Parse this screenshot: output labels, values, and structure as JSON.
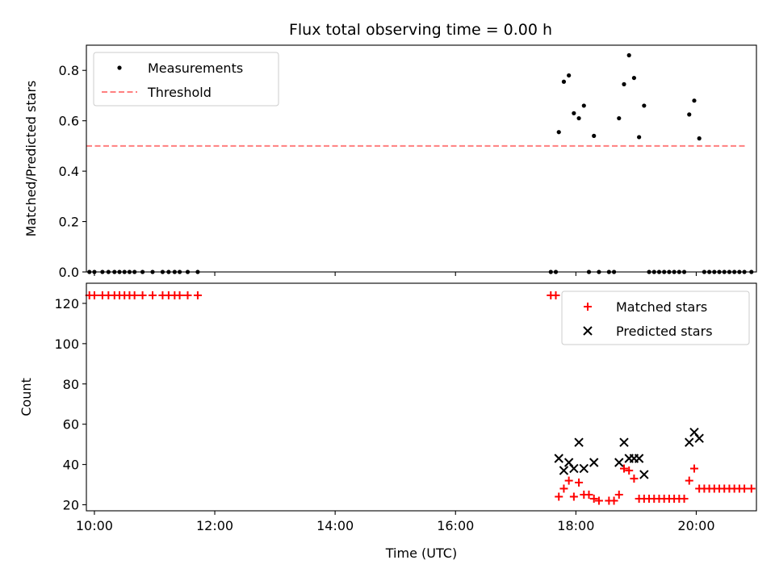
{
  "chart_data": [
    {
      "type": "scatter",
      "title": "Flux total observing time = 0.00 h",
      "xlabel": "",
      "ylabel": "Matched/Predicted stars",
      "xlim": [
        "09:52",
        "21:00"
      ],
      "ylim": [
        0,
        0.9
      ],
      "yticks": [
        0.0,
        0.2,
        0.4,
        0.6,
        0.8
      ],
      "ytick_labels": [
        "0.0",
        "0.2",
        "0.4",
        "0.6",
        "0.8"
      ],
      "xticks": [
        "10:00",
        "12:00",
        "14:00",
        "16:00",
        "18:00",
        "20:00"
      ],
      "grid": false,
      "legend": "top-left",
      "series": [
        {
          "name": "Measurements",
          "marker": "dot",
          "color": "#000000",
          "points": [
            [
              "09:55",
              0
            ],
            [
              "10:00",
              0
            ],
            [
              "10:08",
              0
            ],
            [
              "10:14",
              0
            ],
            [
              "10:20",
              0
            ],
            [
              "10:25",
              0
            ],
            [
              "10:30",
              0
            ],
            [
              "10:35",
              0
            ],
            [
              "10:40",
              0
            ],
            [
              "10:48",
              0
            ],
            [
              "10:58",
              0
            ],
            [
              "11:08",
              0
            ],
            [
              "11:14",
              0
            ],
            [
              "11:20",
              0
            ],
            [
              "11:25",
              0
            ],
            [
              "11:33",
              0
            ],
            [
              "11:43",
              0
            ],
            [
              "17:35",
              0
            ],
            [
              "17:40",
              0
            ],
            [
              "17:43",
              0.555
            ],
            [
              "17:48",
              0.755
            ],
            [
              "17:53",
              0.78
            ],
            [
              "17:58",
              0.63
            ],
            [
              "18:03",
              0.61
            ],
            [
              "18:08",
              0.66
            ],
            [
              "18:13",
              0
            ],
            [
              "18:18",
              0.54
            ],
            [
              "18:23",
              0
            ],
            [
              "18:33",
              0
            ],
            [
              "18:38",
              0
            ],
            [
              "18:43",
              0.61
            ],
            [
              "18:48",
              0.745
            ],
            [
              "18:53",
              0.86
            ],
            [
              "18:58",
              0.77
            ],
            [
              "19:03",
              0.535
            ],
            [
              "19:08",
              0.66
            ],
            [
              "19:13",
              0
            ],
            [
              "19:18",
              0
            ],
            [
              "19:23",
              0
            ],
            [
              "19:28",
              0
            ],
            [
              "19:33",
              0
            ],
            [
              "19:38",
              0
            ],
            [
              "19:43",
              0
            ],
            [
              "19:48",
              0
            ],
            [
              "19:53",
              0.625
            ],
            [
              "19:58",
              0.68
            ],
            [
              "20:03",
              0.53
            ],
            [
              "20:08",
              0
            ],
            [
              "20:13",
              0
            ],
            [
              "20:18",
              0
            ],
            [
              "20:23",
              0
            ],
            [
              "20:28",
              0
            ],
            [
              "20:33",
              0
            ],
            [
              "20:38",
              0
            ],
            [
              "20:43",
              0
            ],
            [
              "20:48",
              0
            ],
            [
              "20:55",
              0
            ]
          ]
        },
        {
          "name": "Threshold",
          "type": "line",
          "style": "dashed",
          "color": "#ff7f7f",
          "points": [
            [
              "09:52",
              0.5
            ],
            [
              "20:50",
              0.5
            ]
          ]
        }
      ]
    },
    {
      "type": "scatter",
      "title": "",
      "xlabel": "Time (UTC)",
      "ylabel": "Count",
      "xlim": [
        "09:52",
        "21:00"
      ],
      "ylim": [
        17,
        130
      ],
      "yticks": [
        20,
        40,
        60,
        80,
        100,
        120
      ],
      "ytick_labels": [
        "20",
        "40",
        "60",
        "80",
        "100",
        "120"
      ],
      "xticks": [
        "10:00",
        "12:00",
        "14:00",
        "16:00",
        "18:00",
        "20:00"
      ],
      "xtick_labels": [
        "10:00",
        "12:00",
        "14:00",
        "16:00",
        "18:00",
        "20:00"
      ],
      "grid": false,
      "legend": "top-right",
      "series": [
        {
          "name": "Matched stars",
          "marker": "plus",
          "color": "#ff0000",
          "points": [
            [
              "09:55",
              124
            ],
            [
              "10:00",
              124
            ],
            [
              "10:08",
              124
            ],
            [
              "10:14",
              124
            ],
            [
              "10:20",
              124
            ],
            [
              "10:25",
              124
            ],
            [
              "10:30",
              124
            ],
            [
              "10:35",
              124
            ],
            [
              "10:40",
              124
            ],
            [
              "10:48",
              124
            ],
            [
              "10:58",
              124
            ],
            [
              "11:08",
              124
            ],
            [
              "11:14",
              124
            ],
            [
              "11:20",
              124
            ],
            [
              "11:25",
              124
            ],
            [
              "11:33",
              124
            ],
            [
              "11:43",
              124
            ],
            [
              "17:35",
              124
            ],
            [
              "17:40",
              124
            ],
            [
              "17:43",
              24
            ],
            [
              "17:48",
              28
            ],
            [
              "17:53",
              32
            ],
            [
              "17:58",
              24
            ],
            [
              "18:03",
              31
            ],
            [
              "18:08",
              25
            ],
            [
              "18:13",
              25
            ],
            [
              "18:18",
              23
            ],
            [
              "18:23",
              22
            ],
            [
              "18:33",
              22
            ],
            [
              "18:38",
              22
            ],
            [
              "18:43",
              25
            ],
            [
              "18:48",
              38
            ],
            [
              "18:53",
              37
            ],
            [
              "18:58",
              33
            ],
            [
              "19:03",
              23
            ],
            [
              "19:08",
              23
            ],
            [
              "19:13",
              23
            ],
            [
              "19:18",
              23
            ],
            [
              "19:23",
              23
            ],
            [
              "19:28",
              23
            ],
            [
              "19:33",
              23
            ],
            [
              "19:38",
              23
            ],
            [
              "19:43",
              23
            ],
            [
              "19:48",
              23
            ],
            [
              "19:53",
              32
            ],
            [
              "19:58",
              38
            ],
            [
              "20:03",
              28
            ],
            [
              "20:08",
              28
            ],
            [
              "20:13",
              28
            ],
            [
              "20:18",
              28
            ],
            [
              "20:23",
              28
            ],
            [
              "20:28",
              28
            ],
            [
              "20:33",
              28
            ],
            [
              "20:38",
              28
            ],
            [
              "20:43",
              28
            ],
            [
              "20:48",
              28
            ],
            [
              "20:55",
              28
            ]
          ]
        },
        {
          "name": "Predicted stars",
          "marker": "x",
          "color": "#000000",
          "points": [
            [
              "17:43",
              43
            ],
            [
              "17:48",
              37
            ],
            [
              "17:53",
              41
            ],
            [
              "17:58",
              38
            ],
            [
              "18:03",
              51
            ],
            [
              "18:08",
              38
            ],
            [
              "18:18",
              41
            ],
            [
              "18:43",
              41
            ],
            [
              "18:48",
              51
            ],
            [
              "18:53",
              43
            ],
            [
              "18:58",
              43
            ],
            [
              "19:03",
              43
            ],
            [
              "19:08",
              35
            ],
            [
              "19:53",
              51
            ],
            [
              "19:58",
              56
            ],
            [
              "20:03",
              53
            ]
          ]
        }
      ]
    }
  ]
}
